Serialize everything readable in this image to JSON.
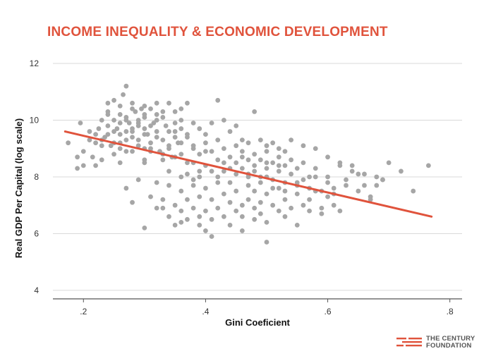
{
  "title": "INCOME INEQUALITY & ECONOMIC DEVELOPMENT",
  "logo": {
    "line1": "THE CENTURY",
    "line2": "FOUNDATION",
    "color": "#e0533c"
  },
  "chart_data": {
    "type": "scatter",
    "title": "INCOME INEQUALITY & ECONOMIC DEVELOPMENT",
    "xlabel": "Gini Coeficient",
    "ylabel": "Real GDP Per Capital (log scale)",
    "xlim": [
      0.15,
      0.82
    ],
    "ylim": [
      3.7,
      12
    ],
    "x_ticks": [
      0.2,
      0.4,
      0.6,
      0.8
    ],
    "x_tick_labels": [
      ".2",
      ".4",
      ".6",
      ".8"
    ],
    "y_ticks": [
      4,
      6,
      8,
      10,
      12
    ],
    "y_tick_labels": [
      "4",
      "6",
      "8",
      "10",
      "12"
    ],
    "grid": true,
    "point_color": "#a6a6a6",
    "trend_color": "#e0533c",
    "trendline": {
      "x": [
        0.17,
        0.77
      ],
      "y": [
        9.6,
        6.6
      ]
    },
    "cluster_points": [
      [
        0.19,
        8.7
      ],
      [
        0.2,
        8.4
      ],
      [
        0.21,
        9.3
      ],
      [
        0.22,
        9.5
      ],
      [
        0.23,
        9.1
      ],
      [
        0.23,
        8.6
      ],
      [
        0.24,
        9.8
      ],
      [
        0.24,
        10.2
      ],
      [
        0.25,
        9.6
      ],
      [
        0.25,
        8.8
      ],
      [
        0.26,
        10.5
      ],
      [
        0.26,
        9.9
      ],
      [
        0.26,
        9.2
      ],
      [
        0.27,
        10.1
      ],
      [
        0.27,
        8.9
      ],
      [
        0.28,
        9.7
      ],
      [
        0.28,
        10.4
      ],
      [
        0.29,
        9.3
      ],
      [
        0.29,
        9.9
      ],
      [
        0.3,
        10.2
      ],
      [
        0.3,
        9.5
      ],
      [
        0.3,
        8.6
      ],
      [
        0.31,
        9.8
      ],
      [
        0.31,
        9.0
      ],
      [
        0.32,
        10.0
      ],
      [
        0.32,
        9.4
      ],
      [
        0.33,
        10.3
      ],
      [
        0.33,
        8.8
      ],
      [
        0.34,
        9.6
      ],
      [
        0.34,
        9.1
      ],
      [
        0.35,
        9.9
      ],
      [
        0.35,
        8.7
      ],
      [
        0.36,
        10.4
      ],
      [
        0.36,
        9.2
      ],
      [
        0.37,
        9.5
      ],
      [
        0.37,
        8.5
      ],
      [
        0.38,
        9.0
      ],
      [
        0.39,
        8.8
      ],
      [
        0.4,
        9.2
      ],
      [
        0.4,
        8.4
      ],
      [
        0.41,
        8.9
      ],
      [
        0.42,
        8.6
      ],
      [
        0.42,
        9.3
      ],
      [
        0.43,
        8.2
      ],
      [
        0.43,
        9.0
      ],
      [
        0.44,
        8.7
      ],
      [
        0.45,
        8.5
      ],
      [
        0.45,
        9.1
      ],
      [
        0.46,
        8.3
      ],
      [
        0.46,
        8.9
      ],
      [
        0.47,
        8.6
      ],
      [
        0.47,
        8.1
      ],
      [
        0.48,
        8.8
      ],
      [
        0.48,
        8.4
      ],
      [
        0.49,
        8.0
      ],
      [
        0.49,
        8.6
      ],
      [
        0.5,
        8.3
      ],
      [
        0.5,
        8.9
      ],
      [
        0.51,
        7.9
      ],
      [
        0.51,
        8.5
      ],
      [
        0.52,
        8.2
      ],
      [
        0.52,
        8.7
      ],
      [
        0.53,
        7.8
      ],
      [
        0.53,
        8.4
      ],
      [
        0.54,
        8.1
      ],
      [
        0.55,
        7.7
      ],
      [
        0.55,
        8.3
      ],
      [
        0.56,
        7.9
      ],
      [
        0.57,
        7.6
      ],
      [
        0.58,
        8.0
      ],
      [
        0.59,
        7.5
      ],
      [
        0.6,
        7.8
      ],
      [
        0.61,
        7.4
      ],
      [
        0.62,
        8.4
      ],
      [
        0.63,
        7.7
      ],
      [
        0.64,
        8.2
      ],
      [
        0.65,
        7.5
      ],
      [
        0.67,
        7.3
      ],
      [
        0.68,
        7.7
      ],
      [
        0.69,
        7.9
      ]
    ],
    "points": [
      [
        0.175,
        9.2
      ],
      [
        0.195,
        9.9
      ],
      [
        0.19,
        8.3
      ],
      [
        0.2,
        8.9
      ],
      [
        0.21,
        9.6
      ],
      [
        0.215,
        8.7
      ],
      [
        0.22,
        9.2
      ],
      [
        0.225,
        9.7
      ],
      [
        0.23,
        10.0
      ],
      [
        0.235,
        9.4
      ],
      [
        0.24,
        10.6
      ],
      [
        0.24,
        10.3
      ],
      [
        0.245,
        9.1
      ],
      [
        0.25,
        10.7
      ],
      [
        0.25,
        10.0
      ],
      [
        0.255,
        9.7
      ],
      [
        0.26,
        10.2
      ],
      [
        0.26,
        9.5
      ],
      [
        0.26,
        8.5
      ],
      [
        0.265,
        10.9
      ],
      [
        0.27,
        11.2
      ],
      [
        0.27,
        10.0
      ],
      [
        0.27,
        9.3
      ],
      [
        0.275,
        9.9
      ],
      [
        0.28,
        10.6
      ],
      [
        0.28,
        9.6
      ],
      [
        0.28,
        8.9
      ],
      [
        0.285,
        10.3
      ],
      [
        0.29,
        9.8
      ],
      [
        0.29,
        9.1
      ],
      [
        0.295,
        10.4
      ],
      [
        0.3,
        10.1
      ],
      [
        0.3,
        9.7
      ],
      [
        0.3,
        9.0
      ],
      [
        0.305,
        9.5
      ],
      [
        0.31,
        10.4
      ],
      [
        0.31,
        9.2
      ],
      [
        0.315,
        9.9
      ],
      [
        0.32,
        10.2
      ],
      [
        0.32,
        9.6
      ],
      [
        0.325,
        8.9
      ],
      [
        0.33,
        10.1
      ],
      [
        0.33,
        9.3
      ],
      [
        0.335,
        9.8
      ],
      [
        0.34,
        10.6
      ],
      [
        0.34,
        9.0
      ],
      [
        0.345,
        8.7
      ],
      [
        0.35,
        9.6
      ],
      [
        0.35,
        10.3
      ],
      [
        0.355,
        9.2
      ],
      [
        0.36,
        10.0
      ],
      [
        0.36,
        8.8
      ],
      [
        0.37,
        9.4
      ],
      [
        0.37,
        10.6
      ],
      [
        0.38,
        9.1
      ],
      [
        0.38,
        8.5
      ],
      [
        0.39,
        9.7
      ],
      [
        0.39,
        8.2
      ],
      [
        0.4,
        8.9
      ],
      [
        0.4,
        9.5
      ],
      [
        0.27,
        7.6
      ],
      [
        0.28,
        7.1
      ],
      [
        0.29,
        7.9
      ],
      [
        0.3,
        6.2
      ],
      [
        0.31,
        7.3
      ],
      [
        0.32,
        6.9
      ],
      [
        0.32,
        7.8
      ],
      [
        0.33,
        7.2
      ],
      [
        0.34,
        6.6
      ],
      [
        0.34,
        7.7
      ],
      [
        0.35,
        7.0
      ],
      [
        0.35,
        6.3
      ],
      [
        0.36,
        7.5
      ],
      [
        0.36,
        6.8
      ],
      [
        0.37,
        7.2
      ],
      [
        0.37,
        6.5
      ],
      [
        0.38,
        7.9
      ],
      [
        0.38,
        6.9
      ],
      [
        0.39,
        7.3
      ],
      [
        0.39,
        6.6
      ],
      [
        0.4,
        7.6
      ],
      [
        0.4,
        6.8
      ],
      [
        0.4,
        6.1
      ],
      [
        0.41,
        7.2
      ],
      [
        0.41,
        6.5
      ],
      [
        0.42,
        7.8
      ],
      [
        0.42,
        6.9
      ],
      [
        0.43,
        7.4
      ],
      [
        0.43,
        6.6
      ],
      [
        0.44,
        7.1
      ],
      [
        0.44,
        8.3
      ],
      [
        0.45,
        6.8
      ],
      [
        0.45,
        7.5
      ],
      [
        0.46,
        7.0
      ],
      [
        0.46,
        6.6
      ],
      [
        0.47,
        7.7
      ],
      [
        0.47,
        7.2
      ],
      [
        0.48,
        6.9
      ],
      [
        0.48,
        7.5
      ],
      [
        0.49,
        7.1
      ],
      [
        0.49,
        6.7
      ],
      [
        0.5,
        7.4
      ],
      [
        0.5,
        5.7
      ],
      [
        0.51,
        7.0
      ],
      [
        0.52,
        7.6
      ],
      [
        0.52,
        6.8
      ],
      [
        0.53,
        7.2
      ],
      [
        0.54,
        6.9
      ],
      [
        0.55,
        7.4
      ],
      [
        0.56,
        7.0
      ],
      [
        0.57,
        6.8
      ],
      [
        0.58,
        7.5
      ],
      [
        0.59,
        6.9
      ],
      [
        0.6,
        7.3
      ],
      [
        0.61,
        7.0
      ],
      [
        0.62,
        6.8
      ],
      [
        0.42,
        10.7
      ],
      [
        0.43,
        10.0
      ],
      [
        0.44,
        9.6
      ],
      [
        0.46,
        9.3
      ],
      [
        0.48,
        10.3
      ],
      [
        0.41,
        9.9
      ],
      [
        0.45,
        9.8
      ],
      [
        0.5,
        9.1
      ],
      [
        0.52,
        9.0
      ],
      [
        0.54,
        9.3
      ],
      [
        0.56,
        9.1
      ],
      [
        0.58,
        9.0
      ],
      [
        0.6,
        8.7
      ],
      [
        0.62,
        8.5
      ],
      [
        0.64,
        8.4
      ],
      [
        0.66,
        8.1
      ],
      [
        0.68,
        8.0
      ],
      [
        0.7,
        8.5
      ],
      [
        0.72,
        8.2
      ],
      [
        0.66,
        7.7
      ],
      [
        0.67,
        7.2
      ],
      [
        0.69,
        7.9
      ],
      [
        0.74,
        7.5
      ],
      [
        0.765,
        8.4
      ],
      [
        0.22,
        8.4
      ],
      [
        0.23,
        9.3
      ],
      [
        0.26,
        9.0
      ],
      [
        0.28,
        9.4
      ],
      [
        0.3,
        8.5
      ],
      [
        0.31,
        8.9
      ],
      [
        0.33,
        8.6
      ],
      [
        0.34,
        8.2
      ],
      [
        0.36,
        8.0
      ],
      [
        0.37,
        8.1
      ],
      [
        0.38,
        7.7
      ],
      [
        0.39,
        8.0
      ],
      [
        0.41,
        8.2
      ],
      [
        0.42,
        8.0
      ],
      [
        0.44,
        7.8
      ],
      [
        0.45,
        8.1
      ],
      [
        0.47,
        8.0
      ],
      [
        0.49,
        7.8
      ],
      [
        0.5,
        8.0
      ],
      [
        0.51,
        7.6
      ],
      [
        0.53,
        7.5
      ],
      [
        0.55,
        7.8
      ],
      [
        0.56,
        8.5
      ],
      [
        0.57,
        8.0
      ],
      [
        0.58,
        8.3
      ],
      [
        0.6,
        8.0
      ],
      [
        0.61,
        7.6
      ],
      [
        0.63,
        7.9
      ],
      [
        0.65,
        8.1
      ],
      [
        0.59,
        6.7
      ],
      [
        0.41,
        5.9
      ],
      [
        0.39,
        6.3
      ],
      [
        0.36,
        6.4
      ],
      [
        0.33,
        6.9
      ],
      [
        0.44,
        6.3
      ],
      [
        0.46,
        6.1
      ],
      [
        0.48,
        6.5
      ],
      [
        0.5,
        6.4
      ],
      [
        0.53,
        6.6
      ],
      [
        0.55,
        6.3
      ],
      [
        0.57,
        7.2
      ],
      [
        0.24,
        9.5
      ],
      [
        0.25,
        9.2
      ],
      [
        0.27,
        9.6
      ],
      [
        0.29,
        10.0
      ],
      [
        0.3,
        10.5
      ],
      [
        0.32,
        10.6
      ],
      [
        0.35,
        9.4
      ],
      [
        0.36,
        9.7
      ],
      [
        0.38,
        9.9
      ],
      [
        0.43,
        8.5
      ],
      [
        0.46,
        8.7
      ],
      [
        0.47,
        9.2
      ],
      [
        0.49,
        9.3
      ],
      [
        0.51,
        9.2
      ],
      [
        0.53,
        8.9
      ],
      [
        0.54,
        8.6
      ],
      [
        0.52,
        8.4
      ],
      [
        0.5,
        8.5
      ],
      [
        0.48,
        8.2
      ]
    ]
  }
}
